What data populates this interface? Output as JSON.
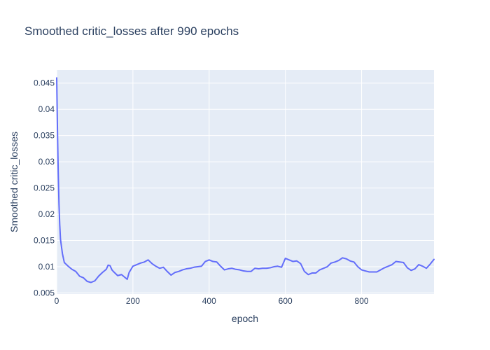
{
  "chart_data": {
    "type": "line",
    "title": "Smoothed critic_losses after 990 epochs",
    "xlabel": "epoch",
    "ylabel": "Smoothed critic_losses",
    "xlim": [
      0,
      990
    ],
    "ylim": [
      0.0048,
      0.0475
    ],
    "x_ticks": [
      0,
      200,
      400,
      600,
      800
    ],
    "x_tick_labels": [
      "0",
      "200",
      "400",
      "600",
      "800"
    ],
    "y_ticks": [
      0.005,
      0.01,
      0.015,
      0.02,
      0.025,
      0.03,
      0.035,
      0.04,
      0.045
    ],
    "y_tick_labels": [
      "0.005",
      "0.01",
      "0.015",
      "0.02",
      "0.025",
      "0.03",
      "0.035",
      "0.04",
      "0.045"
    ],
    "grid": true,
    "series": [
      {
        "color": "#636efa",
        "x": [
          0,
          2,
          4,
          6,
          8,
          10,
          15,
          20,
          30,
          40,
          50,
          60,
          70,
          80,
          90,
          100,
          110,
          120,
          130,
          135,
          140,
          145,
          150,
          160,
          170,
          180,
          185,
          190,
          200,
          210,
          220,
          230,
          240,
          250,
          260,
          270,
          280,
          290,
          300,
          310,
          320,
          330,
          340,
          350,
          360,
          370,
          380,
          390,
          400,
          410,
          420,
          430,
          440,
          450,
          460,
          470,
          480,
          490,
          500,
          510,
          520,
          530,
          540,
          550,
          560,
          570,
          580,
          590,
          600,
          610,
          620,
          630,
          640,
          650,
          660,
          670,
          680,
          690,
          700,
          710,
          720,
          730,
          740,
          750,
          760,
          770,
          780,
          790,
          800,
          810,
          820,
          830,
          840,
          850,
          860,
          870,
          880,
          890,
          900,
          910,
          920,
          930,
          940,
          950,
          960,
          970,
          980,
          990
        ],
        "y": [
          0.046,
          0.036,
          0.028,
          0.022,
          0.018,
          0.0152,
          0.0125,
          0.0108,
          0.0101,
          0.0095,
          0.0091,
          0.0082,
          0.0079,
          0.0072,
          0.007,
          0.0073,
          0.0082,
          0.0089,
          0.0095,
          0.0103,
          0.0102,
          0.0094,
          0.009,
          0.0083,
          0.0085,
          0.0079,
          0.0076,
          0.0089,
          0.0101,
          0.0104,
          0.0107,
          0.0109,
          0.0113,
          0.0106,
          0.0101,
          0.0097,
          0.0099,
          0.0091,
          0.0084,
          0.0089,
          0.0091,
          0.0094,
          0.0096,
          0.0097,
          0.0099,
          0.01,
          0.0101,
          0.011,
          0.0113,
          0.011,
          0.0109,
          0.0101,
          0.0094,
          0.0096,
          0.0097,
          0.0095,
          0.0094,
          0.0092,
          0.0091,
          0.0091,
          0.0097,
          0.0096,
          0.0097,
          0.0097,
          0.0098,
          0.01,
          0.0101,
          0.0099,
          0.0116,
          0.0113,
          0.011,
          0.0111,
          0.0106,
          0.0091,
          0.0085,
          0.0088,
          0.0088,
          0.0094,
          0.0097,
          0.01,
          0.0107,
          0.0109,
          0.0112,
          0.0117,
          0.0115,
          0.0111,
          0.0109,
          0.01,
          0.0094,
          0.0092,
          0.009,
          0.009,
          0.009,
          0.0094,
          0.0098,
          0.0101,
          0.0104,
          0.011,
          0.0109,
          0.0108,
          0.0098,
          0.0093,
          0.0096,
          0.0104,
          0.0101,
          0.0097,
          0.0105,
          0.0114
        ]
      }
    ]
  }
}
